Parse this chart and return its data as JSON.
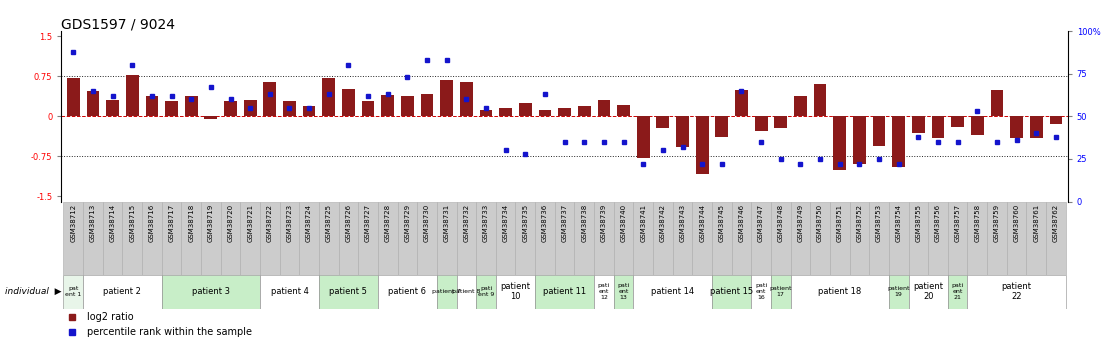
{
  "title": "GDS1597 / 9024",
  "samples": [
    "GSM38712",
    "GSM38713",
    "GSM38714",
    "GSM38715",
    "GSM38716",
    "GSM38717",
    "GSM38718",
    "GSM38719",
    "GSM38720",
    "GSM38721",
    "GSM38722",
    "GSM38723",
    "GSM38724",
    "GSM38725",
    "GSM38726",
    "GSM38727",
    "GSM38728",
    "GSM38729",
    "GSM38730",
    "GSM38731",
    "GSM38732",
    "GSM38733",
    "GSM38734",
    "GSM38735",
    "GSM38736",
    "GSM38737",
    "GSM38738",
    "GSM38739",
    "GSM38740",
    "GSM38741",
    "GSM38742",
    "GSM38743",
    "GSM38744",
    "GSM38745",
    "GSM38746",
    "GSM38747",
    "GSM38748",
    "GSM38749",
    "GSM38750",
    "GSM38751",
    "GSM38752",
    "GSM38753",
    "GSM38754",
    "GSM38755",
    "GSM38756",
    "GSM38757",
    "GSM38758",
    "GSM38759",
    "GSM38760",
    "GSM38761",
    "GSM38762"
  ],
  "log2ratio": [
    0.72,
    0.48,
    0.3,
    0.78,
    0.38,
    0.28,
    0.38,
    -0.05,
    0.28,
    0.3,
    0.65,
    0.28,
    0.2,
    0.72,
    0.52,
    0.28,
    0.4,
    0.38,
    0.42,
    0.68,
    0.65,
    0.12,
    0.15,
    0.25,
    0.12,
    0.15,
    0.2,
    0.3,
    0.22,
    -0.78,
    -0.22,
    -0.58,
    -1.08,
    -0.38,
    0.5,
    -0.28,
    -0.22,
    0.38,
    0.6,
    -1.0,
    -0.9,
    -0.55,
    -0.95,
    -0.32,
    -0.4,
    -0.2,
    -0.35,
    0.5,
    -0.4,
    -0.4,
    -0.15
  ],
  "percentile": [
    88,
    65,
    62,
    80,
    62,
    62,
    60,
    67,
    60,
    55,
    63,
    55,
    55,
    63,
    80,
    62,
    63,
    73,
    83,
    83,
    60,
    55,
    30,
    28,
    63,
    35,
    35,
    35,
    35,
    22,
    30,
    32,
    22,
    22,
    65,
    35,
    25,
    22,
    25,
    22,
    22,
    25,
    22,
    38,
    35,
    35,
    53,
    35,
    36,
    40,
    38
  ],
  "patients": [
    {
      "label": "pat\nent 1",
      "start": 0,
      "end": 0,
      "color": "#e8f5e9"
    },
    {
      "label": "patient 2",
      "start": 1,
      "end": 4,
      "color": "#ffffff"
    },
    {
      "label": "patient 3",
      "start": 5,
      "end": 9,
      "color": "#c8eec8"
    },
    {
      "label": "patient 4",
      "start": 10,
      "end": 12,
      "color": "#ffffff"
    },
    {
      "label": "patient 5",
      "start": 13,
      "end": 15,
      "color": "#c8eec8"
    },
    {
      "label": "patient 6",
      "start": 16,
      "end": 18,
      "color": "#ffffff"
    },
    {
      "label": "patient 7",
      "start": 19,
      "end": 19,
      "color": "#c8eec8"
    },
    {
      "label": "patient 8",
      "start": 20,
      "end": 20,
      "color": "#ffffff"
    },
    {
      "label": "pati\nent 9",
      "start": 21,
      "end": 21,
      "color": "#c8eec8"
    },
    {
      "label": "patient\n10",
      "start": 22,
      "end": 23,
      "color": "#ffffff"
    },
    {
      "label": "patient 11",
      "start": 24,
      "end": 26,
      "color": "#c8eec8"
    },
    {
      "label": "pati\nent\n12",
      "start": 27,
      "end": 27,
      "color": "#ffffff"
    },
    {
      "label": "pati\nent\n13",
      "start": 28,
      "end": 28,
      "color": "#c8eec8"
    },
    {
      "label": "patient 14",
      "start": 29,
      "end": 32,
      "color": "#ffffff"
    },
    {
      "label": "patient 15",
      "start": 33,
      "end": 34,
      "color": "#c8eec8"
    },
    {
      "label": "pati\nent\n16",
      "start": 35,
      "end": 35,
      "color": "#ffffff"
    },
    {
      "label": "patient\n17",
      "start": 36,
      "end": 36,
      "color": "#c8eec8"
    },
    {
      "label": "patient 18",
      "start": 37,
      "end": 41,
      "color": "#ffffff"
    },
    {
      "label": "patient\n19",
      "start": 42,
      "end": 42,
      "color": "#c8eec8"
    },
    {
      "label": "patient\n20",
      "start": 43,
      "end": 44,
      "color": "#ffffff"
    },
    {
      "label": "pati\nent\n21",
      "start": 45,
      "end": 45,
      "color": "#c8eec8"
    },
    {
      "label": "patient\n22",
      "start": 46,
      "end": 50,
      "color": "#ffffff"
    }
  ],
  "ylim": [
    -1.6,
    1.6
  ],
  "yticks_left": [
    -1.5,
    -0.75,
    0.0,
    0.75,
    1.5
  ],
  "ytick_labels_left": [
    "-1.5",
    "-0.75",
    "0",
    "0.75",
    "1.5"
  ],
  "right_yticks": [
    0,
    25,
    50,
    75,
    100
  ],
  "right_yticklabels": [
    "0",
    "25",
    "50",
    "75",
    "100%"
  ],
  "bar_color": "#8B1A1A",
  "dot_color": "#1414CC",
  "hline_color": "#CC0000",
  "dotline_color": "#222222",
  "bg_color": "#ffffff",
  "sample_cell_color": "#cccccc",
  "sample_cell_edge": "#aaaaaa",
  "title_fontsize": 10,
  "tick_fontsize": 6,
  "sample_fontsize": 5,
  "patient_fontsize": 6
}
